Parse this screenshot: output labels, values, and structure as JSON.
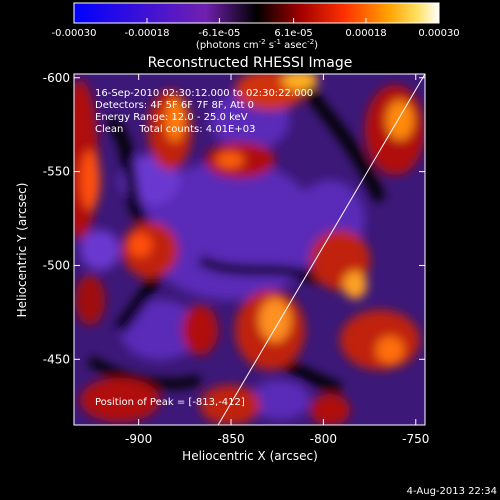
{
  "colorbar": {
    "ticks": [
      {
        "label": "-0.00030",
        "value": -0.0003
      },
      {
        "label": "-0.00018",
        "value": -0.00018
      },
      {
        "label": "-6.1e-05",
        "value": -6.1e-05
      },
      {
        "label": "6.1e-05",
        "value": 6.1e-05
      },
      {
        "label": "0.00018",
        "value": 0.00018
      },
      {
        "label": "0.00030",
        "value": 0.0003
      }
    ],
    "range": [
      -0.0003,
      0.0003
    ],
    "unit_text": "(photons cm",
    "unit_sup1": "-2",
    "unit_mid": " s",
    "unit_sup2": "-1",
    "unit_tail": " asec",
    "unit_sup3": "-2",
    "unit_close": ")"
  },
  "title": "Reconstructed RHESSI Image",
  "info_lines": [
    "16-Sep-2010 02:30:12.000 to 02:30:22.000",
    "Detectors: 4F 5F 6F 7F 8F, Att 0",
    "Energy Range: 12.0 - 25.0 keV",
    "Clean     Total counts: 4.01E+03"
  ],
  "peak_text": "Position of Peak = [-813,-412]",
  "x_axis": {
    "label": "Heliocentric X (arcsec)",
    "range": [
      -935,
      -745
    ],
    "ticks": [
      {
        "label": "-900",
        "value": -900
      },
      {
        "label": "-850",
        "value": -850
      },
      {
        "label": "-800",
        "value": -800
      },
      {
        "label": "-750",
        "value": -750
      }
    ]
  },
  "y_axis": {
    "label": "Heliocentric Y (arcsec)",
    "range": [
      -602,
      -415
    ],
    "ticks": [
      {
        "label": "-450",
        "value": -450
      },
      {
        "label": "-500",
        "value": -500
      },
      {
        "label": "-550",
        "value": -550
      },
      {
        "label": "-600",
        "value": -600
      }
    ]
  },
  "limb_line": {
    "x1": -857,
    "y1": -415,
    "x2": -745,
    "y2": -602
  },
  "timestamp": "4-Aug-2013 22:34"
}
